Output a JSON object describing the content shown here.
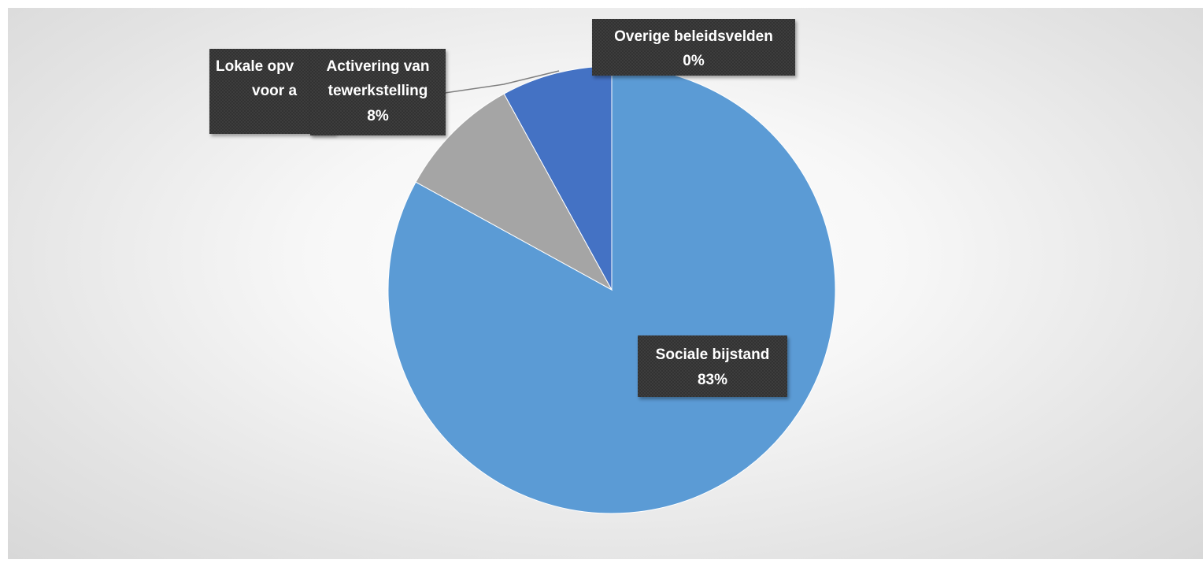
{
  "chart_data": {
    "type": "pie",
    "title": "",
    "slices": [
      {
        "label": "Sociale bijstand",
        "value": 83,
        "value_label": "83%",
        "color": "#5b9bd5"
      },
      {
        "label": "Lokale opvang voor asielzoekers",
        "value": 9,
        "value_label": "",
        "color": "#a5a5a5"
      },
      {
        "label": "Activering van tewerkstelling",
        "value": 8,
        "value_label": "8%",
        "color": "#4472c4"
      },
      {
        "label": "Overige beleidsvelden",
        "value": 0,
        "value_label": "0%",
        "color": "#ed7d31"
      }
    ],
    "labels": {
      "sociale_line1": "Sociale bijstand",
      "sociale_line2": "83%",
      "lokale_line1": "Lokale opv",
      "lokale_line2": "voor a",
      "activering_line1": "Activering van",
      "activering_line2": "tewerkstelling",
      "activering_line3": "8%",
      "overige_line1": "Overige beleidsvelden",
      "overige_line2": "0%"
    },
    "legend": "none",
    "start_angle": "12 o'clock",
    "direction": "clockwise"
  }
}
